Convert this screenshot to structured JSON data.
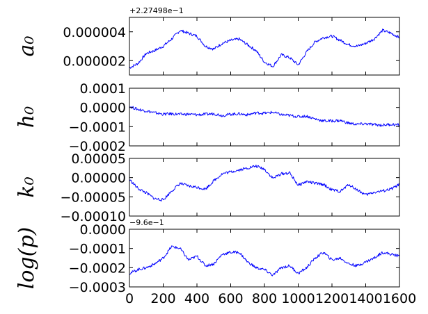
{
  "figure": {
    "background": "#ffffff",
    "line_color": "#0000ff"
  },
  "chart_data": [
    {
      "type": "line",
      "ylabel": "a_0",
      "ylabel_display": "a₀",
      "offset_text": "+2.27498e−1",
      "xlim": [
        0,
        1600
      ],
      "ylim": [
        1e-06,
        5e-06
      ],
      "yticks": [
        2e-06,
        4e-06
      ],
      "ytick_labels": [
        "0.000002",
        "0.000004"
      ],
      "grid": false,
      "x": [
        0,
        50,
        100,
        150,
        200,
        250,
        300,
        350,
        400,
        450,
        500,
        550,
        600,
        650,
        700,
        750,
        800,
        850,
        900,
        950,
        1000,
        1050,
        1100,
        1150,
        1200,
        1250,
        1300,
        1350,
        1400,
        1450,
        1500,
        1550,
        1600
      ],
      "series": [
        {
          "values": [
            1.5e-06,
            1.8e-06,
            2.5e-06,
            2.7e-06,
            3e-06,
            3.5e-06,
            4.1e-06,
            3.9e-06,
            3.7e-06,
            3e-06,
            2.8e-06,
            3.2e-06,
            3.4e-06,
            3.5e-06,
            3.1e-06,
            2.7e-06,
            1.9e-06,
            1.6e-06,
            2.4e-06,
            2.2e-06,
            1.7e-06,
            2.6e-06,
            3.3e-06,
            3.6e-06,
            3.7e-06,
            3.4e-06,
            3.1e-06,
            3e-06,
            3.2e-06,
            3.5e-06,
            4.1e-06,
            3.9e-06,
            3.6e-06
          ]
        }
      ]
    },
    {
      "type": "line",
      "ylabel": "h_0",
      "ylabel_display": "h₀",
      "xlim": [
        0,
        1600
      ],
      "ylim": [
        -0.0002,
        0.0001
      ],
      "yticks": [
        -0.0002,
        -0.0001,
        0.0,
        0.0001
      ],
      "ytick_labels": [
        "−0.0002",
        "−0.0001",
        "0.0000",
        "0.0001"
      ],
      "grid": false,
      "x": [
        0,
        50,
        100,
        150,
        200,
        250,
        300,
        350,
        400,
        450,
        500,
        550,
        600,
        650,
        700,
        750,
        800,
        850,
        900,
        950,
        1000,
        1050,
        1100,
        1150,
        1200,
        1250,
        1300,
        1350,
        1400,
        1450,
        1500,
        1550,
        1600
      ],
      "series": [
        {
          "values": [
            5e-06,
            -1e-05,
            -1.8e-05,
            -2.8e-05,
            -3.5e-05,
            -3.3e-05,
            -3.6e-05,
            -3.5e-05,
            -3.8e-05,
            -3.6e-05,
            -3.2e-05,
            -4.2e-05,
            -3.5e-05,
            -3.3e-05,
            -3.8e-05,
            -2.8e-05,
            -3e-05,
            -2.5e-05,
            -3.8e-05,
            -4.2e-05,
            -4.8e-05,
            -4.5e-05,
            -6e-05,
            -7e-05,
            -7e-05,
            -6.8e-05,
            -8.2e-05,
            -8.8e-05,
            -8.5e-05,
            -9e-05,
            -9.2e-05,
            -8.8e-05,
            -9.2e-05
          ]
        }
      ]
    },
    {
      "type": "line",
      "ylabel": "k_0",
      "ylabel_display": "k₀",
      "xlim": [
        0,
        1600
      ],
      "ylim": [
        -0.0001,
        5e-05
      ],
      "yticks": [
        -0.0001,
        -5e-05,
        0.0,
        5e-05
      ],
      "ytick_labels": [
        "−0.00010",
        "−0.00005",
        "0.00000",
        "0.00005"
      ],
      "grid": false,
      "x": [
        0,
        50,
        100,
        150,
        200,
        250,
        300,
        350,
        400,
        450,
        500,
        550,
        600,
        650,
        700,
        750,
        800,
        850,
        900,
        950,
        1000,
        1050,
        1100,
        1150,
        1200,
        1250,
        1300,
        1350,
        1400,
        1450,
        1500,
        1550,
        1600
      ],
      "series": [
        {
          "values": [
            -5e-06,
            -2.8e-05,
            -4e-05,
            -5.5e-05,
            -5.8e-05,
            -3.5e-05,
            -1.5e-05,
            -2.2e-05,
            -2.5e-05,
            -3e-05,
            -8e-06,
            1e-05,
            1.5e-05,
            2e-05,
            2.5e-05,
            3e-05,
            2.2e-05,
            -2e-06,
            1e-05,
            1.2e-05,
            -2e-05,
            -1e-05,
            -1.5e-05,
            -1.8e-05,
            -3.2e-05,
            -3.6e-05,
            -1.8e-05,
            -3.2e-05,
            -4.5e-05,
            -3.8e-05,
            -3.5e-05,
            -3e-05,
            -1.8e-05
          ]
        }
      ]
    },
    {
      "type": "line",
      "ylabel": "log(p)",
      "ylabel_display": "log(p)",
      "offset_text": "−9.6e−1",
      "xlim": [
        0,
        1600
      ],
      "ylim": [
        -0.0003,
        0.0
      ],
      "yticks": [
        -0.0003,
        -0.0002,
        -0.0001,
        0.0
      ],
      "ytick_labels": [
        "−0.0003",
        "−0.0002",
        "−0.0001",
        "0.0000"
      ],
      "xticks": [
        0,
        200,
        400,
        600,
        800,
        1000,
        1200,
        1400,
        1600
      ],
      "xtick_labels": [
        "0",
        "200",
        "400",
        "600",
        "800",
        "1000",
        "1200",
        "1400",
        "1600"
      ],
      "grid": false,
      "x": [
        0,
        50,
        100,
        150,
        200,
        250,
        300,
        350,
        400,
        450,
        500,
        550,
        600,
        650,
        700,
        750,
        800,
        850,
        900,
        950,
        1000,
        1050,
        1100,
        1150,
        1200,
        1250,
        1300,
        1350,
        1400,
        1450,
        1500,
        1550,
        1600
      ],
      "series": [
        {
          "values": [
            -0.00023,
            -0.00021,
            -0.0002,
            -0.00018,
            -0.00015,
            -9e-05,
            -0.0001,
            -0.00016,
            -0.00014,
            -0.00019,
            -0.00018,
            -0.00013,
            -0.00012,
            -0.00012,
            -0.00017,
            -0.0002,
            -0.00021,
            -0.00024,
            -0.0002,
            -0.00019,
            -0.00023,
            -0.0002,
            -0.00015,
            -0.00012,
            -0.00016,
            -0.00015,
            -0.00018,
            -0.00019,
            -0.00017,
            -0.00015,
            -0.00012,
            -0.00013,
            -0.00014
          ]
        }
      ]
    }
  ]
}
